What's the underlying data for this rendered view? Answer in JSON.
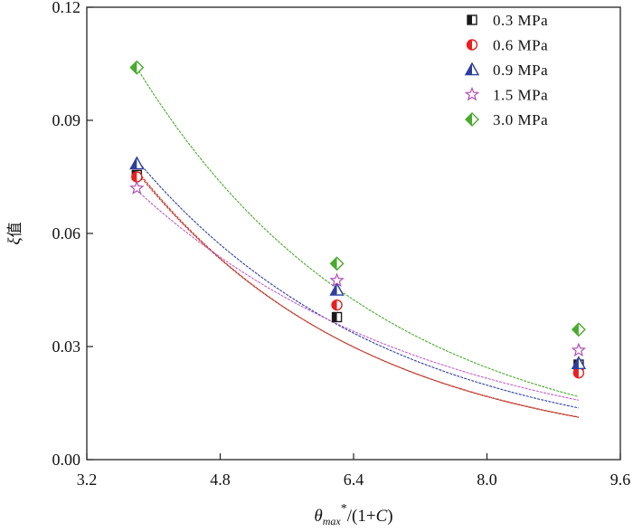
{
  "chart_data": {
    "type": "scatter",
    "xlabel": {
      "theta": "θ",
      "sub": "max",
      "sup": "*",
      "rest_open": "/(1+",
      "c": "C",
      "rest_close": ")"
    },
    "ylabel": {
      "xi": "ξ",
      "zh": "值"
    },
    "xlim": [
      3.2,
      9.6
    ],
    "ylim": [
      0.0,
      0.12
    ],
    "xticks": [
      "3.2",
      "4.8",
      "6.4",
      "8.0",
      "9.6"
    ],
    "yticks": [
      "0.00",
      "0.03",
      "0.06",
      "0.09",
      "0.12"
    ],
    "grid": false,
    "legend_position": "top-right",
    "series": [
      {
        "name": "0.3 MPa",
        "marker": "half-square",
        "color": "#1a1a1a",
        "fit_color": "#c0392b",
        "x": [
          3.8,
          6.2,
          9.1
        ],
        "y": [
          0.0755,
          0.0378,
          0.0252
        ],
        "fit": {
          "a": 0.3053,
          "b": -0.3632
        }
      },
      {
        "name": "0.6 MPa",
        "marker": "half-circle",
        "color": "#e8211f",
        "fit_color": "#c0392b",
        "x": [
          3.8,
          6.2,
          9.1
        ],
        "y": [
          0.075,
          0.041,
          0.023
        ],
        "fit": {
          "a": 0.2999,
          "b": -0.3603
        }
      },
      {
        "name": "0.9 MPa",
        "marker": "half-triangle",
        "color": "#2d3f9e",
        "fit_color": "#2d3f9e",
        "x": [
          3.8,
          6.2,
          9.1
        ],
        "y": [
          0.0785,
          0.045,
          0.0255
        ],
        "fit": {
          "a": 0.2802,
          "b": -0.3316
        }
      },
      {
        "name": "1.5 MPa",
        "marker": "half-star",
        "color": "#b24fb7",
        "fit_color": "#c060c8",
        "x": [
          3.8,
          6.2,
          9.1
        ],
        "y": [
          0.072,
          0.0475,
          0.029
        ],
        "fit": {
          "a": 0.2111,
          "b": -0.2851
        }
      },
      {
        "name": "3.0 MPa",
        "marker": "half-diamond",
        "color": "#4aaa2e",
        "fit_color": "#4aaa2e",
        "x": [
          3.8,
          6.2,
          9.1
        ],
        "y": [
          0.104,
          0.052,
          0.0345
        ],
        "fit": {
          "a": 0.3855,
          "b": -0.3449
        }
      }
    ]
  }
}
